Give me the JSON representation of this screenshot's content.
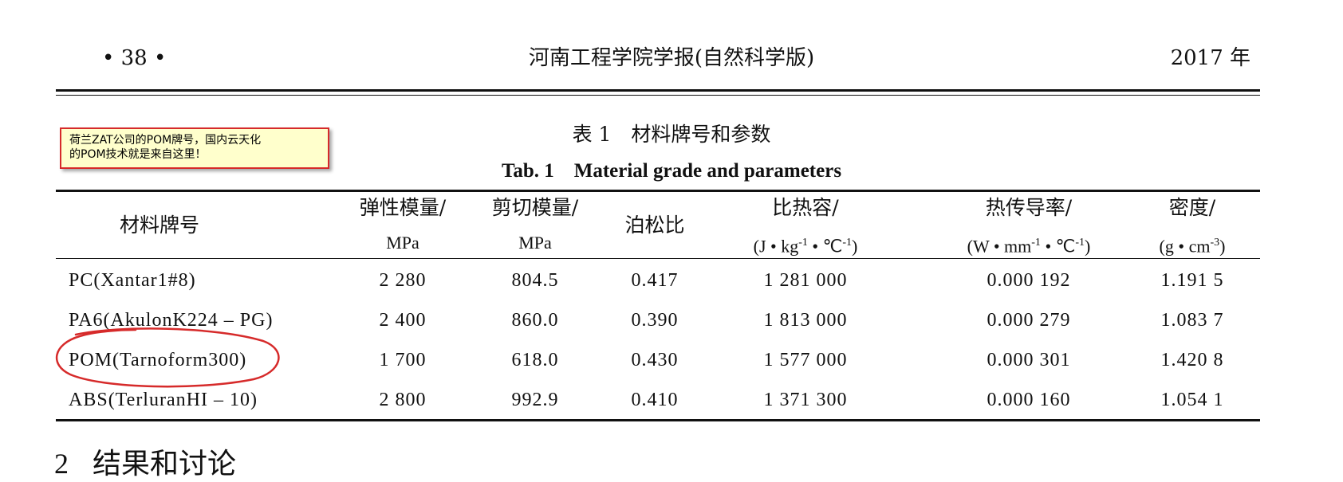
{
  "header": {
    "page_no": "• 38 •",
    "journal": "河南工程学院学报(自然科学版)",
    "year": "2017 年"
  },
  "caption": {
    "zh": "表 1　材料牌号和参数",
    "en": "Tab. 1　Material grade and parameters"
  },
  "annotation": {
    "line1": "荷兰ZAT公司的POM牌号，国内云天化",
    "line2": "的POM技术就是来自这里！"
  },
  "table": {
    "headers": {
      "grade": "材料牌号",
      "elastic": "弹性模量/",
      "elastic_unit": "MPa",
      "shear": "剪切模量/",
      "shear_unit": "MPa",
      "poisson": "泊松比",
      "heat": "比热容/",
      "heat_unit_a": "(J • kg",
      "heat_unit_b": " • ℃",
      "heat_unit_c": ")",
      "cond": "热传导率/",
      "cond_unit_a": "(W • mm",
      "cond_unit_b": " • ℃",
      "cond_unit_c": ")",
      "density": "密度/",
      "density_unit_a": "(g • cm",
      "density_unit_b": ")",
      "exp_neg1": "-1",
      "exp_neg3": "-3"
    },
    "rows": [
      {
        "name": "PC(Xantar1#8)",
        "elastic": "2 280",
        "shear": "804.5",
        "poisson": "0.417",
        "heat": "1 281 000",
        "cond": "0.000 192",
        "density": "1.191 5"
      },
      {
        "name": "PA6(AkulonK224 – PG)",
        "elastic": "2 400",
        "shear": "860.0",
        "poisson": "0.390",
        "heat": "1 813 000",
        "cond": "0.000 279",
        "density": "1.083 7"
      },
      {
        "name": "POM(Tarnoform300)",
        "elastic": "1 700",
        "shear": "618.0",
        "poisson": "0.430",
        "heat": "1 577 000",
        "cond": "0.000 301",
        "density": "1.420 8"
      },
      {
        "name": "ABS(TerluranHI – 10)",
        "elastic": "2 800",
        "shear": "992.9",
        "poisson": "0.410",
        "heat": "1 371 300",
        "cond": "0.000 160",
        "density": "1.054 1"
      }
    ]
  },
  "section": {
    "number": "2",
    "title": "结果和讨论"
  },
  "colors": {
    "annotation_border": "#d62a2a",
    "annotation_fill": "#ffffcc",
    "circle_stroke": "#d62a2a"
  }
}
